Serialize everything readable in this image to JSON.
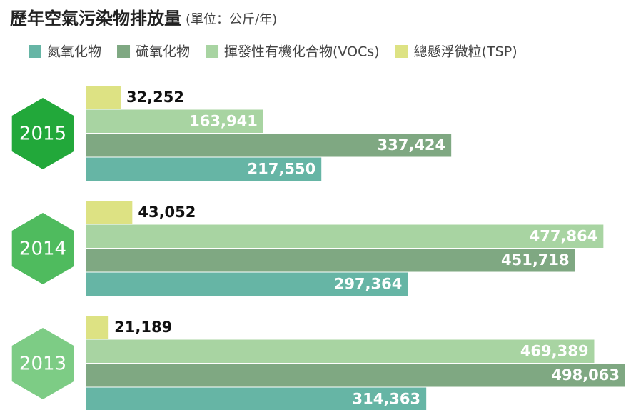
{
  "chart_data": {
    "type": "hbar",
    "title": "歷年空氣污染物排放量",
    "subtitle": "(單位：公斤/年)",
    "categories": [
      "2015",
      "2014",
      "2013"
    ],
    "category_colors": [
      "#22a83a",
      "#4fbb5e",
      "#7dcc85"
    ],
    "series": [
      {
        "name": "氮氧化物",
        "color": "#66b5a5",
        "values": [
          217550,
          297364,
          314363
        ],
        "value_labels": [
          "217,550",
          "297,364",
          "314,363"
        ]
      },
      {
        "name": "硫氧化物",
        "color": "#7fa882",
        "values": [
          337424,
          451718,
          498063
        ],
        "value_labels": [
          "337,424",
          "451,718",
          "498,063"
        ]
      },
      {
        "name": "揮發性有機化合物(VOCs)",
        "color": "#a8d4a2",
        "values": [
          163941,
          477864,
          469389
        ],
        "value_labels": [
          "163,941",
          "477,864",
          "469,389"
        ]
      },
      {
        "name": "總懸浮微粒(TSP)",
        "color": "#dde283",
        "values": [
          32252,
          43052,
          21189
        ],
        "value_labels": [
          "32,252",
          "43,052",
          "21,189"
        ]
      }
    ]
  }
}
